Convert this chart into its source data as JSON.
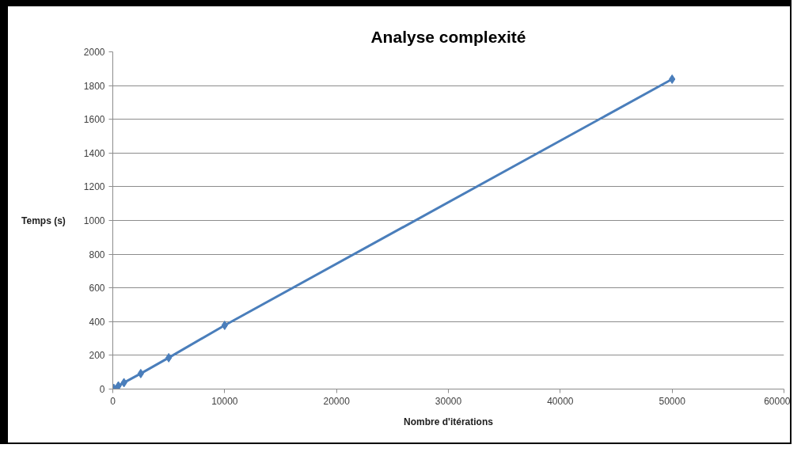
{
  "chart_data": {
    "type": "line",
    "title": "Analyse complexité",
    "xlabel": "Nombre d'itérations",
    "ylabel": "Temps (s)",
    "x": [
      100,
      500,
      1000,
      2500,
      5000,
      10000,
      50000
    ],
    "series": [
      {
        "color": "#4a7ebb",
        "values": [
          4,
          19,
          38,
          92,
          186,
          378,
          1838
        ]
      }
    ],
    "xlim": [
      0,
      60000
    ],
    "xticks": [
      0,
      10000,
      20000,
      30000,
      40000,
      50000,
      60000
    ],
    "ylim": [
      0,
      2000
    ],
    "yticks": [
      0,
      200,
      400,
      600,
      800,
      1000,
      1200,
      1400,
      1600,
      1800,
      2000
    ],
    "grid": "y",
    "marker": "diamond",
    "line_style": "solid"
  }
}
